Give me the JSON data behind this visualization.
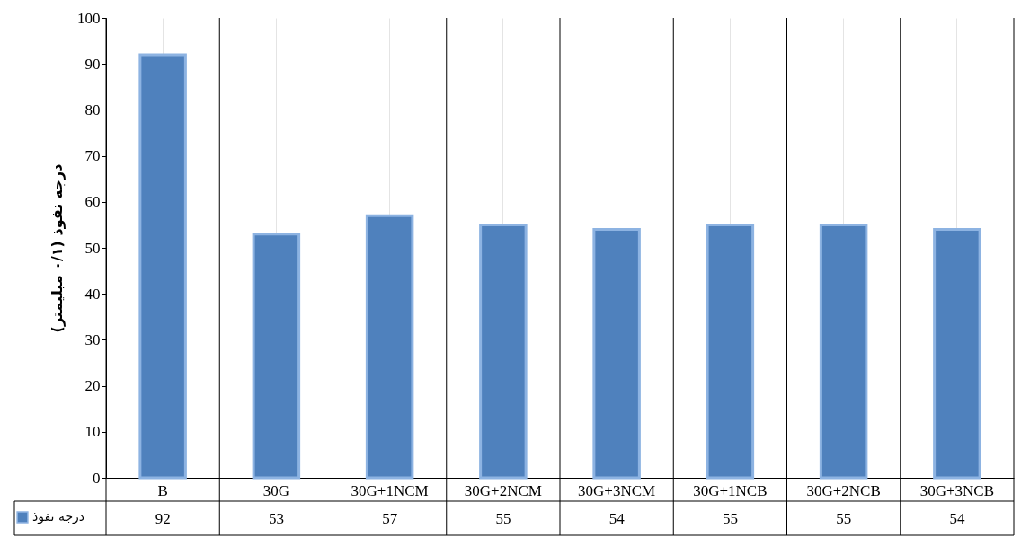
{
  "chart_data": {
    "type": "bar",
    "ylabel": "درجه نفوذ (۰/۱ میلیمتر)",
    "categories": [
      "B",
      "30G",
      "30G+1NCM",
      "30G+2NCM",
      "30G+3NCM",
      "30G+1NCB",
      "30G+2NCB",
      "30G+3NCB"
    ],
    "series": [
      {
        "name": "درجه نفوذ",
        "color": "#4f81bd",
        "values": [
          92,
          53,
          57,
          55,
          54,
          55,
          55,
          54
        ]
      }
    ],
    "ylim": [
      0,
      100
    ],
    "yticks": [
      0,
      10,
      20,
      30,
      40,
      50,
      60,
      70,
      80,
      90,
      100
    ],
    "grid": "x",
    "legend": "bottom left",
    "data_labels": true
  }
}
